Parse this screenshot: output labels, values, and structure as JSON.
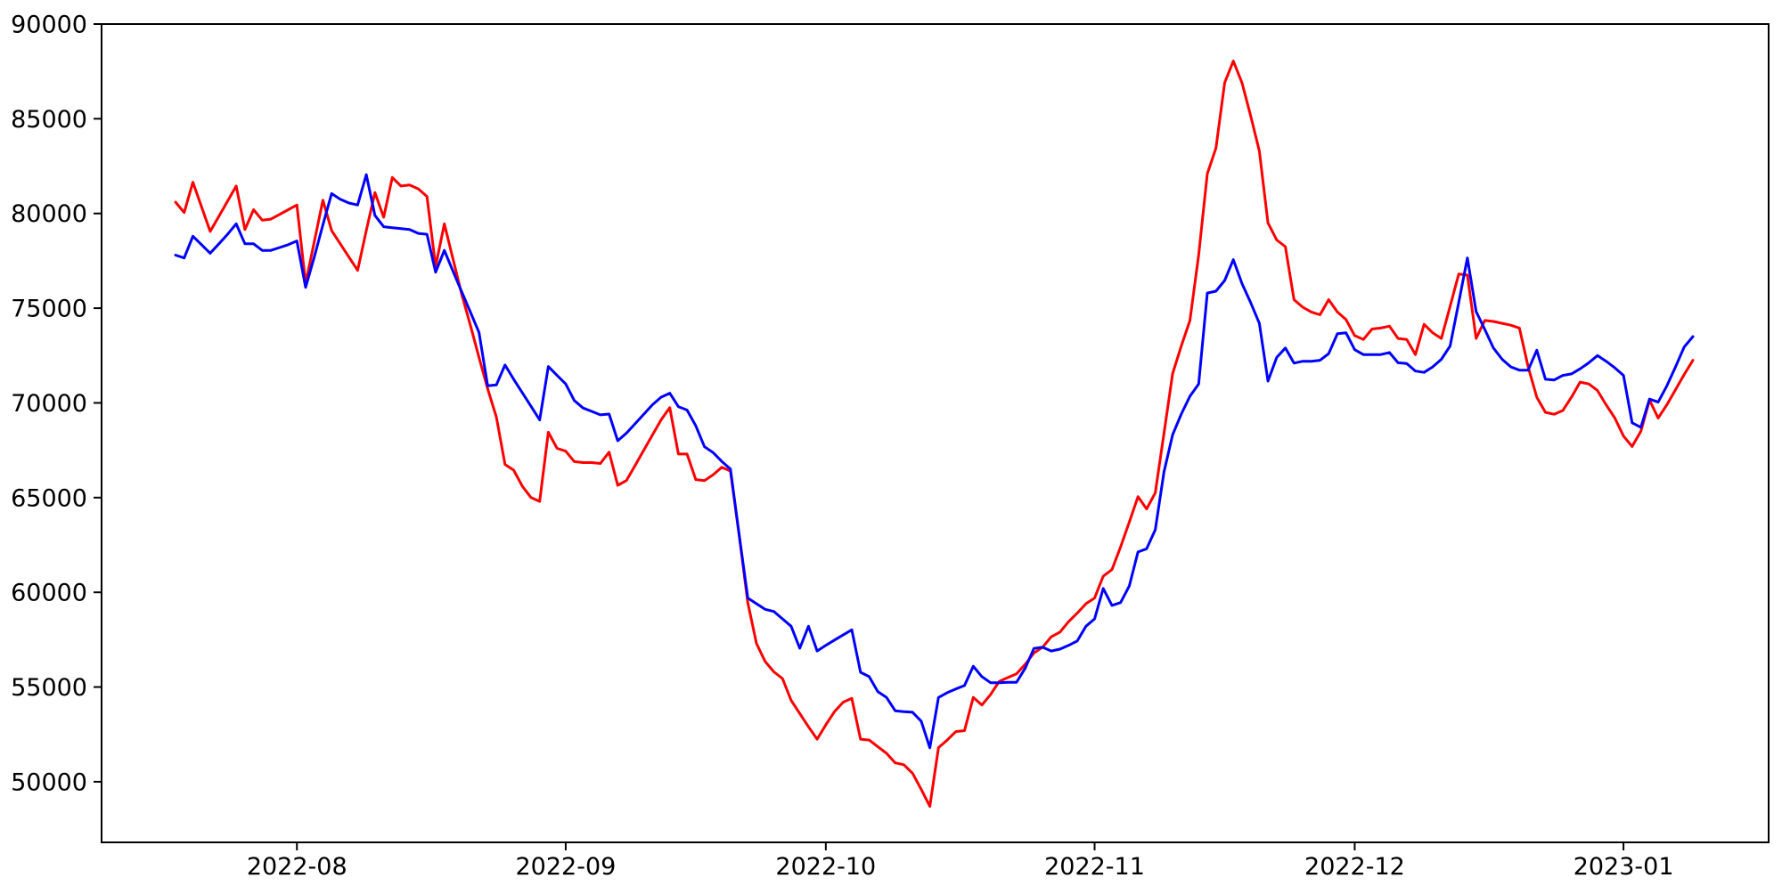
{
  "figure": {
    "background_color": "#ffffff",
    "axes_color": "#000000"
  },
  "chart_data": {
    "type": "line",
    "title": "",
    "xlabel": "",
    "ylabel": "",
    "grid": false,
    "legend": "none",
    "x_start_date": "2022-07-18",
    "x_frequency": "daily",
    "xlim_days": [
      -8.53,
      183.74
    ],
    "ylim": [
      46800,
      90000
    ],
    "y_ticks": [
      50000,
      55000,
      60000,
      65000,
      70000,
      75000,
      80000,
      85000,
      90000
    ],
    "x_ticks": [
      {
        "date": "2022-08-01",
        "label": "2022-08"
      },
      {
        "date": "2022-09-01",
        "label": "2022-09"
      },
      {
        "date": "2022-10-01",
        "label": "2022-10"
      },
      {
        "date": "2022-11-01",
        "label": "2022-11"
      },
      {
        "date": "2022-12-01",
        "label": "2022-12"
      },
      {
        "date": "2023-01-01",
        "label": "2023-01"
      }
    ],
    "series": [
      {
        "name": "red-series",
        "color": "#ff0000",
        "line_width": 3,
        "values": [
          80600,
          80050,
          81650,
          80350,
          79050,
          79850,
          80650,
          81450,
          79150,
          80200,
          79650,
          79700,
          79950,
          80200,
          80450,
          76300,
          78500,
          80700,
          79100,
          78400,
          77700,
          77000,
          79100,
          81100,
          79800,
          81900,
          81450,
          81500,
          81300,
          80900,
          77200,
          79450,
          77600,
          75750,
          74100,
          72400,
          70750,
          69250,
          66750,
          66450,
          65600,
          65000,
          64800,
          68450,
          67600,
          67450,
          66900,
          66850,
          66850,
          66800,
          67400,
          65650,
          65900,
          66700,
          67500,
          68300,
          69100,
          69750,
          67300,
          67300,
          65950,
          65900,
          66200,
          66600,
          66400,
          63050,
          59450,
          57300,
          56350,
          55800,
          55450,
          54300,
          53600,
          52900,
          52250,
          53000,
          53700,
          54200,
          54400,
          52250,
          52200,
          51850,
          51500,
          51000,
          50900,
          50450,
          49600,
          48700,
          51800,
          52200,
          52650,
          52700,
          54450,
          54050,
          54600,
          55300,
          55500,
          55700,
          56200,
          56800,
          57100,
          57650,
          57900,
          58450,
          58900,
          59400,
          59700,
          60850,
          61200,
          62400,
          63700,
          65050,
          64400,
          65250,
          68400,
          71550,
          73000,
          74350,
          77800,
          82100,
          83450,
          86900,
          88050,
          86900,
          85150,
          83300,
          79500,
          78600,
          78250,
          75450,
          75050,
          74800,
          74650,
          75450,
          74800,
          74400,
          73550,
          73350,
          73900,
          73950,
          74050,
          73400,
          73350,
          72550,
          74150,
          73700,
          73400,
          75100,
          76800,
          76750,
          73400,
          74350,
          74300,
          74200,
          74100,
          73950,
          71900,
          70300,
          69500,
          69400,
          69600,
          70300,
          71100,
          71000,
          70650,
          69900,
          69200,
          68250,
          67700,
          68500,
          70150,
          69200,
          69900,
          70700,
          71500,
          72250
        ]
      },
      {
        "name": "blue-series",
        "color": "#0000ff",
        "line_width": 3,
        "values": [
          77800,
          77650,
          78800,
          78350,
          77900,
          78400,
          78900,
          79450,
          78400,
          78400,
          78050,
          78050,
          78200,
          78350,
          78550,
          76100,
          77700,
          79400,
          81050,
          80750,
          80550,
          80450,
          82050,
          79900,
          79300,
          79250,
          79200,
          79150,
          78950,
          78900,
          76900,
          78050,
          76950,
          75880,
          74800,
          73720,
          70900,
          70950,
          72000,
          71250,
          70530,
          69820,
          69100,
          71920,
          71450,
          71000,
          70120,
          69730,
          69550,
          69370,
          69410,
          68000,
          68400,
          68900,
          69400,
          69900,
          70300,
          70510,
          69800,
          69620,
          68790,
          67690,
          67380,
          66910,
          66510,
          63070,
          59700,
          59400,
          59100,
          58990,
          58600,
          58210,
          57050,
          58210,
          56900,
          57200,
          57480,
          57750,
          58020,
          55780,
          55550,
          54760,
          54450,
          53750,
          53700,
          53670,
          53200,
          51790,
          54450,
          54700,
          54900,
          55080,
          56100,
          55550,
          55230,
          55230,
          55250,
          55250,
          56000,
          57040,
          57100,
          56900,
          57000,
          57200,
          57430,
          58210,
          58600,
          60200,
          59310,
          59460,
          60330,
          62130,
          62300,
          63300,
          66360,
          68320,
          69410,
          70350,
          71000,
          75800,
          75900,
          76460,
          77560,
          76300,
          75290,
          74200,
          71150,
          72400,
          72900,
          72100,
          72200,
          72200,
          72250,
          72600,
          73650,
          73700,
          72810,
          72550,
          72550,
          72550,
          72660,
          72120,
          72080,
          71680,
          71610,
          71900,
          72300,
          73000,
          75300,
          77650,
          74820,
          73880,
          72900,
          72300,
          71900,
          71730,
          71730,
          72780,
          71250,
          71210,
          71450,
          71530,
          71800,
          72120,
          72500,
          72200,
          71850,
          71450,
          68950,
          68710,
          70200,
          70040,
          70900,
          71900,
          72950,
          73500
        ]
      }
    ]
  }
}
